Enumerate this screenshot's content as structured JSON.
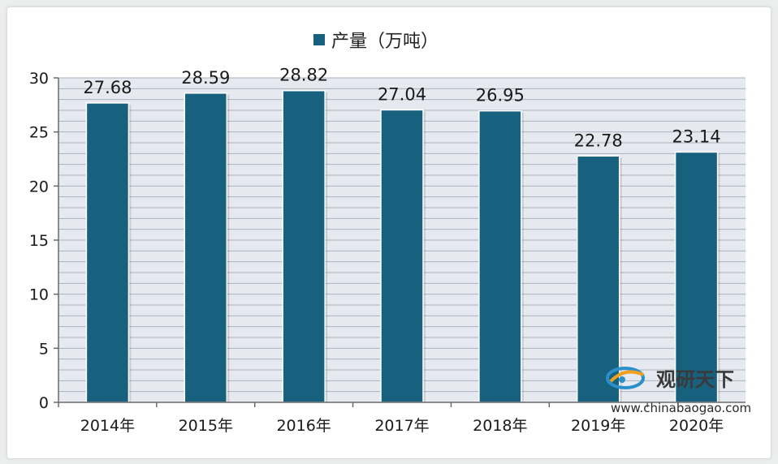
{
  "chart_data": {
    "type": "bar",
    "categories": [
      "2014年",
      "2015年",
      "2016年",
      "2017年",
      "2018年",
      "2019年",
      "2020年"
    ],
    "series": [
      {
        "name": "产量（万吨）",
        "values": [
          27.68,
          28.59,
          28.82,
          27.04,
          26.95,
          22.78,
          23.14
        ]
      }
    ],
    "data_labels": [
      "27.68",
      "28.59",
      "28.82",
      "27.04",
      "26.95",
      "22.78",
      "23.14"
    ],
    "ylim": [
      0,
      30
    ],
    "yticks": [
      0,
      5,
      10,
      15,
      20,
      25,
      30
    ],
    "grid": true,
    "legend_position": "top",
    "colors": {
      "bar": "#17607e",
      "grid": "#a9b2c0",
      "plot_bg": "#e6eaf0"
    }
  },
  "watermark": {
    "name": "观研天下",
    "url": "www.chinabaogao.com"
  }
}
